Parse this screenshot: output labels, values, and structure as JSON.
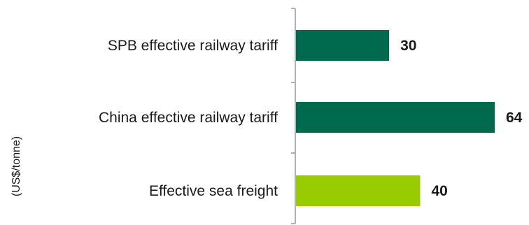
{
  "chart_data": {
    "type": "bar",
    "orientation": "horizontal",
    "categories": [
      "SPB effective railway tariff",
      "China effective railway tariff",
      "Effective sea freight"
    ],
    "values": [
      30,
      64,
      40
    ],
    "value_labels": [
      "30",
      "64",
      "40"
    ],
    "bar_colors": [
      "#006A4E",
      "#006A4E",
      "#99CC00"
    ],
    "unit_label": "(US$/tonne)",
    "xlim": [
      0,
      64
    ],
    "grid": false,
    "legend": "none"
  }
}
